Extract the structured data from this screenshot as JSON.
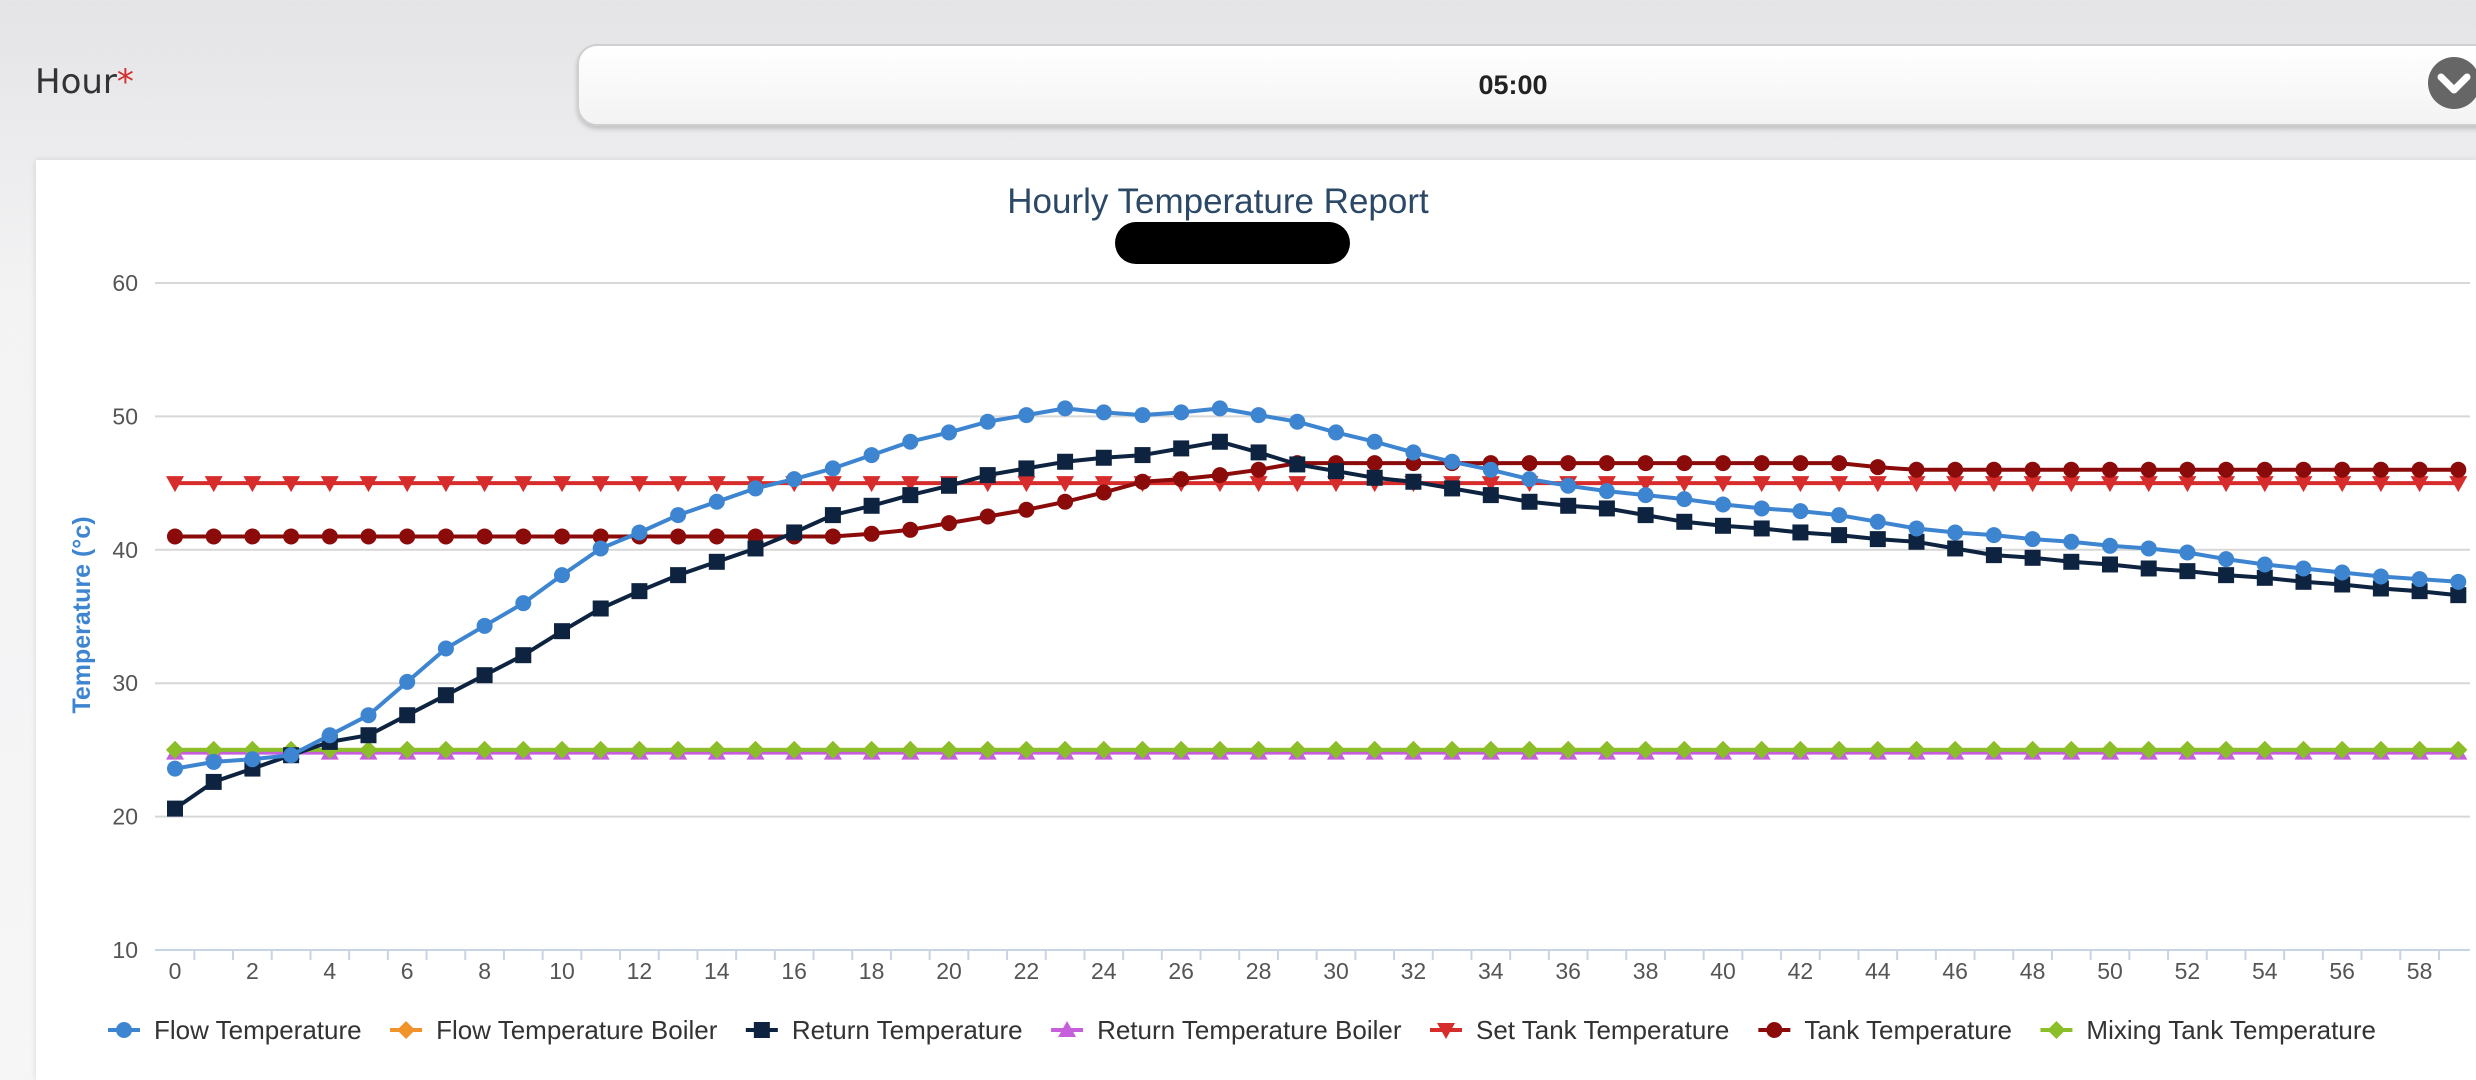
{
  "form": {
    "hour_label": "Hour",
    "required_mark": "*",
    "hour_value": "05:00"
  },
  "icons": {
    "dropdown": "chevron-down-icon"
  },
  "chart_data": {
    "type": "line",
    "title": "Hourly Temperature Report",
    "ylabel": "Temperature (°c)",
    "xlabel": "",
    "ylim": [
      10,
      60
    ],
    "yticks": [
      10,
      20,
      30,
      40,
      50,
      60
    ],
    "xlim": [
      0,
      59
    ],
    "xtick_labels": [
      0,
      2,
      4,
      6,
      8,
      10,
      12,
      14,
      16,
      18,
      20,
      22,
      24,
      26,
      28,
      30,
      32,
      34,
      36,
      38,
      40,
      42,
      44,
      46,
      48,
      50,
      52,
      54,
      56,
      58
    ],
    "grid": true,
    "legend_position": "bottom",
    "x": [
      0,
      1,
      2,
      3,
      4,
      5,
      6,
      7,
      8,
      9,
      10,
      11,
      12,
      13,
      14,
      15,
      16,
      17,
      18,
      19,
      20,
      21,
      22,
      23,
      24,
      25,
      26,
      27,
      28,
      29,
      30,
      31,
      32,
      33,
      34,
      35,
      36,
      37,
      38,
      39,
      40,
      41,
      42,
      43,
      44,
      45,
      46,
      47,
      48,
      49,
      50,
      51,
      52,
      53,
      54,
      55,
      56,
      57,
      58,
      59
    ],
    "series": [
      {
        "name": "Flow Temperature",
        "color": "#3d85d1",
        "marker": "circle",
        "values": [
          23.6,
          24.1,
          24.3,
          24.6,
          26.1,
          27.6,
          30.1,
          32.6,
          34.3,
          36.0,
          38.1,
          40.1,
          41.3,
          42.6,
          43.6,
          44.6,
          45.3,
          46.1,
          47.1,
          48.1,
          48.8,
          49.6,
          50.1,
          50.6,
          50.3,
          50.1,
          50.3,
          50.6,
          50.1,
          49.6,
          48.8,
          48.1,
          47.3,
          46.6,
          46.0,
          45.3,
          44.8,
          44.4,
          44.1,
          43.8,
          43.4,
          43.1,
          42.9,
          42.6,
          42.1,
          41.6,
          41.3,
          41.1,
          40.8,
          40.6,
          40.3,
          40.1,
          39.8,
          39.3,
          38.9,
          38.6,
          38.3,
          38.0,
          37.8,
          37.6
        ]
      },
      {
        "name": "Flow Temperature Boiler",
        "color": "#f0932b",
        "marker": "diamond",
        "values": [
          25,
          25,
          25,
          25,
          25,
          25,
          25,
          25,
          25,
          25,
          25,
          25,
          25,
          25,
          25,
          25,
          25,
          25,
          25,
          25,
          25,
          25,
          25,
          25,
          25,
          25,
          25,
          25,
          25,
          25,
          25,
          25,
          25,
          25,
          25,
          25,
          25,
          25,
          25,
          25,
          25,
          25,
          25,
          25,
          25,
          25,
          25,
          25,
          25,
          25,
          25,
          25,
          25,
          25,
          25,
          25,
          25,
          25,
          25,
          25
        ]
      },
      {
        "name": "Return Temperature",
        "color": "#0d2340",
        "marker": "square",
        "values": [
          20.6,
          22.6,
          23.6,
          24.6,
          25.6,
          26.1,
          27.6,
          29.1,
          30.6,
          32.1,
          33.9,
          35.6,
          36.9,
          38.1,
          39.1,
          40.1,
          41.3,
          42.6,
          43.3,
          44.1,
          44.8,
          45.6,
          46.1,
          46.6,
          46.9,
          47.1,
          47.6,
          48.1,
          47.3,
          46.4,
          45.9,
          45.4,
          45.1,
          44.6,
          44.1,
          43.6,
          43.3,
          43.1,
          42.6,
          42.1,
          41.8,
          41.6,
          41.3,
          41.1,
          40.8,
          40.6,
          40.1,
          39.6,
          39.4,
          39.1,
          38.9,
          38.6,
          38.4,
          38.1,
          37.9,
          37.6,
          37.4,
          37.1,
          36.9,
          36.6
        ]
      },
      {
        "name": "Return Temperature Boiler",
        "color": "#c65fdc",
        "marker": "triangle",
        "values": [
          24.8,
          24.8,
          24.8,
          24.8,
          24.8,
          24.8,
          24.8,
          24.8,
          24.8,
          24.8,
          24.8,
          24.8,
          24.8,
          24.8,
          24.8,
          24.8,
          24.8,
          24.8,
          24.8,
          24.8,
          24.8,
          24.8,
          24.8,
          24.8,
          24.8,
          24.8,
          24.8,
          24.8,
          24.8,
          24.8,
          24.8,
          24.8,
          24.8,
          24.8,
          24.8,
          24.8,
          24.8,
          24.8,
          24.8,
          24.8,
          24.8,
          24.8,
          24.8,
          24.8,
          24.8,
          24.8,
          24.8,
          24.8,
          24.8,
          24.8,
          24.8,
          24.8,
          24.8,
          24.8,
          24.8,
          24.8,
          24.8,
          24.8,
          24.8,
          24.8
        ]
      },
      {
        "name": "Set Tank Temperature",
        "color": "#d62c2c",
        "marker": "triangle-down",
        "values": [
          45,
          45,
          45,
          45,
          45,
          45,
          45,
          45,
          45,
          45,
          45,
          45,
          45,
          45,
          45,
          45,
          45,
          45,
          45,
          45,
          45,
          45,
          45,
          45,
          45,
          45,
          45,
          45,
          45,
          45,
          45,
          45,
          45,
          45,
          45,
          45,
          45,
          45,
          45,
          45,
          45,
          45,
          45,
          45,
          45,
          45,
          45,
          45,
          45,
          45,
          45,
          45,
          45,
          45,
          45,
          45,
          45,
          45,
          45,
          45
        ]
      },
      {
        "name": "Tank Temperature",
        "color": "#8b0a0a",
        "marker": "circle",
        "values": [
          41,
          41,
          41,
          41,
          41,
          41,
          41,
          41,
          41,
          41,
          41,
          41,
          41,
          41,
          41,
          41,
          41,
          41,
          41.2,
          41.5,
          42,
          42.5,
          43,
          43.6,
          44.3,
          45.1,
          45.3,
          45.6,
          46,
          46.5,
          46.5,
          46.5,
          46.5,
          46.5,
          46.5,
          46.5,
          46.5,
          46.5,
          46.5,
          46.5,
          46.5,
          46.5,
          46.5,
          46.5,
          46.2,
          46,
          46,
          46,
          46,
          46,
          46,
          46,
          46,
          46,
          46,
          46,
          46,
          46,
          46,
          46
        ]
      },
      {
        "name": "Mixing Tank Temperature",
        "color": "#8bbf2a",
        "marker": "diamond",
        "values": [
          25,
          25,
          25,
          25,
          25,
          25,
          25,
          25,
          25,
          25,
          25,
          25,
          25,
          25,
          25,
          25,
          25,
          25,
          25,
          25,
          25,
          25,
          25,
          25,
          25,
          25,
          25,
          25,
          25,
          25,
          25,
          25,
          25,
          25,
          25,
          25,
          25,
          25,
          25,
          25,
          25,
          25,
          25,
          25,
          25,
          25,
          25,
          25,
          25,
          25,
          25,
          25,
          25,
          25,
          25,
          25,
          25,
          25,
          25,
          25
        ]
      }
    ]
  }
}
